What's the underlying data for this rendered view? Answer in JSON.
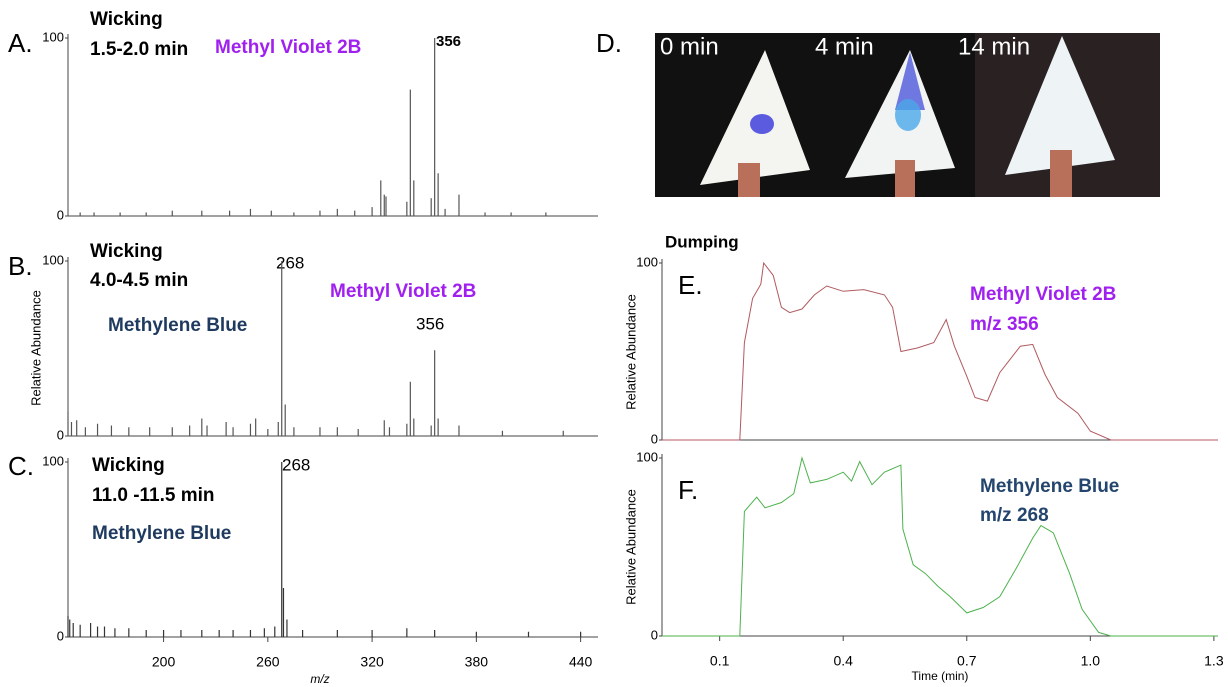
{
  "chart_data": [
    {
      "type": "spectrum",
      "label": "A.",
      "color": "#555555",
      "x": [
        152,
        160,
        175,
        190,
        205,
        222,
        238,
        250,
        262,
        275,
        290,
        300,
        310,
        320,
        325,
        327,
        328,
        340,
        342,
        344,
        354,
        356,
        358,
        362,
        370,
        385,
        400,
        420
      ],
      "values": [
        2,
        2,
        2,
        2,
        3,
        3,
        3,
        4,
        3,
        2,
        3,
        4,
        3,
        5,
        20,
        12,
        11,
        8,
        71,
        20,
        10,
        100,
        24,
        4,
        12,
        2,
        2,
        2
      ],
      "xlim": [
        145,
        450
      ],
      "ylim": [
        0,
        100
      ],
      "yticks": [
        0,
        100
      ],
      "annotations": [
        {
          "text": "Wicking",
          "color": "#000000"
        },
        {
          "text": "1.5-2.0 min",
          "color": "#000000"
        },
        {
          "text": "Methyl Violet 2B",
          "color": "#a020f0"
        },
        {
          "text": "356",
          "color": "#000000"
        }
      ]
    },
    {
      "type": "spectrum",
      "label": "B.",
      "color": "#555555",
      "ylabel": "Relative Abundance",
      "x": [
        145,
        147,
        150,
        155,
        162,
        170,
        180,
        192,
        205,
        215,
        222,
        225,
        236,
        240,
        250,
        253,
        260,
        266,
        268,
        270,
        275,
        290,
        300,
        312,
        327,
        330,
        340,
        342,
        344,
        354,
        356,
        358,
        370,
        395,
        430
      ],
      "values": [
        14,
        8,
        9,
        5,
        7,
        6,
        5,
        5,
        5,
        6,
        10,
        6,
        8,
        5,
        7,
        10,
        4,
        8,
        100,
        18,
        5,
        5,
        5,
        4,
        9,
        5,
        7,
        31,
        10,
        6,
        49,
        10,
        6,
        3,
        3
      ],
      "xlim": [
        145,
        450
      ],
      "ylim": [
        0,
        100
      ],
      "yticks": [
        0,
        100
      ],
      "annotations": [
        {
          "text": "Wicking",
          "color": "#000000"
        },
        {
          "text": "4.0-4.5 min",
          "color": "#000000"
        },
        {
          "text": "268",
          "color": "#000000"
        },
        {
          "text": "Methyl Violet 2B",
          "color": "#a020f0"
        },
        {
          "text": "Methylene Blue",
          "color": "#1f3a5f"
        },
        {
          "text": "356",
          "color": "#000000"
        }
      ]
    },
    {
      "type": "spectrum",
      "label": "C.",
      "color": "#333333",
      "xlabel": "m/z",
      "x": [
        145,
        146,
        148,
        152,
        158,
        162,
        166,
        172,
        180,
        190,
        200,
        210,
        222,
        232,
        240,
        250,
        258,
        264,
        268,
        269,
        271,
        280,
        300,
        320,
        340,
        356,
        380,
        410,
        440
      ],
      "values": [
        12,
        10,
        8,
        7,
        8,
        6,
        6,
        5,
        5,
        4,
        4,
        4,
        4,
        4,
        4,
        4,
        5,
        6,
        100,
        28,
        10,
        4,
        4,
        4,
        5,
        4,
        3,
        3,
        3
      ],
      "xlim": [
        145,
        450
      ],
      "xticks": [
        200,
        260,
        320,
        380,
        440
      ],
      "ylim": [
        0,
        100
      ],
      "yticks": [
        0,
        100
      ],
      "annotations": [
        {
          "text": "Wicking",
          "color": "#000000"
        },
        {
          "text": "11.0 -11.5 min",
          "color": "#000000"
        },
        {
          "text": "268",
          "color": "#000000"
        },
        {
          "text": "Methylene Blue",
          "color": "#1f3a5f"
        }
      ]
    },
    {
      "type": "line",
      "label": "E.",
      "title": "Dumping",
      "color": "#b05a60",
      "ylabel": "Relative Abundance",
      "x": [
        -0.04,
        0.149,
        0.16,
        0.18,
        0.2,
        0.207,
        0.23,
        0.25,
        0.27,
        0.3,
        0.33,
        0.36,
        0.4,
        0.45,
        0.5,
        0.52,
        0.54,
        0.58,
        0.62,
        0.65,
        0.67,
        0.7,
        0.72,
        0.75,
        0.78,
        0.8,
        0.83,
        0.86,
        0.89,
        0.92,
        0.97,
        1.0,
        1.05,
        1.2,
        1.31
      ],
      "values": [
        0,
        0,
        55,
        80,
        88,
        100,
        93,
        75,
        72,
        74,
        82,
        87,
        84,
        85,
        82,
        75,
        50,
        52,
        55,
        68,
        53,
        36,
        24,
        22,
        38,
        44,
        53,
        54,
        37,
        24,
        15,
        5,
        0,
        0,
        0
      ],
      "xlim": [
        -0.04,
        1.31
      ],
      "ylim": [
        0,
        100
      ],
      "yticks": [
        0,
        100
      ],
      "annotations": [
        {
          "text": "Methyl Violet 2B",
          "color": "#a020f0"
        },
        {
          "text": "m/z 356",
          "color": "#a020f0"
        }
      ]
    },
    {
      "type": "line",
      "label": "F.",
      "color": "#4db24d",
      "ylabel": "Relative Abundance",
      "xlabel": "Time (min)",
      "x": [
        -0.04,
        0.149,
        0.16,
        0.19,
        0.21,
        0.25,
        0.28,
        0.3,
        0.32,
        0.36,
        0.4,
        0.42,
        0.44,
        0.47,
        0.5,
        0.54,
        0.545,
        0.57,
        0.6,
        0.63,
        0.66,
        0.7,
        0.74,
        0.78,
        0.82,
        0.86,
        0.88,
        0.91,
        0.95,
        0.98,
        1.02,
        1.05,
        1.31
      ],
      "values": [
        0,
        0,
        70,
        78,
        72,
        75,
        80,
        100,
        86,
        88,
        92,
        87,
        98,
        85,
        92,
        96,
        60,
        40,
        35,
        28,
        22,
        13,
        16,
        22,
        38,
        55,
        62,
        58,
        35,
        15,
        2,
        0,
        0
      ],
      "xlim": [
        -0.04,
        1.31
      ],
      "xticks": [
        0.1,
        0.4,
        0.7,
        {
          "value": 1,
          "label": "1.0"
        },
        1.3
      ],
      "ylim": [
        0,
        100
      ],
      "yticks": [
        0,
        100
      ],
      "annotations": [
        {
          "text": "Methylene Blue",
          "color": "#24466e"
        },
        {
          "text": "m/z 268",
          "color": "#24466e"
        }
      ]
    }
  ],
  "panel_d": {
    "label": "D.",
    "frames": [
      "0 min",
      "4 min",
      "14 min"
    ]
  }
}
